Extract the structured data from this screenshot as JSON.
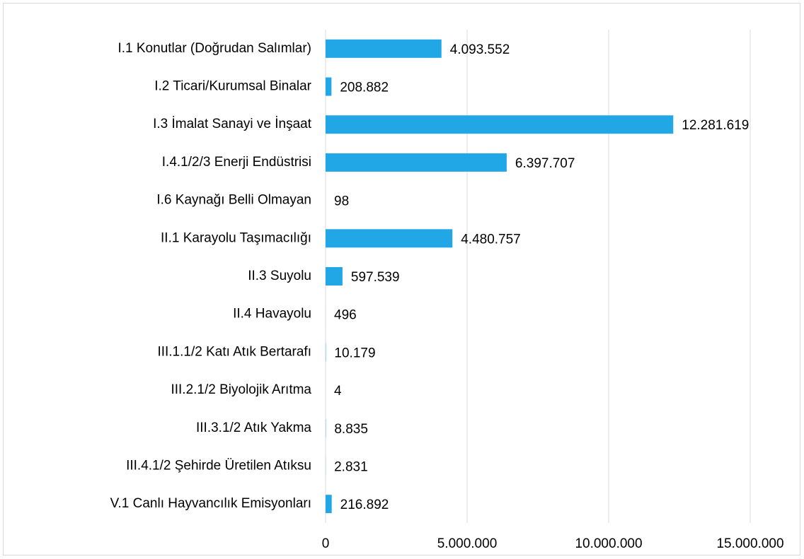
{
  "chart_data": {
    "type": "barh",
    "categories": [
      "I.1 Konutlar (Doğrudan Salımlar)",
      "I.2 Ticari/Kurumsal Binalar",
      "I.3 İmalat Sanayi ve İnşaat",
      "I.4.1/2/3 Enerji Endüstrisi",
      "I.6 Kaynağı Belli Olmayan",
      "II.1 Karayolu Taşımacılığı",
      "II.3 Suyolu",
      "II.4 Havayolu",
      "III.1.1/2 Katı Atık Bertarafı",
      "III.2.1/2 Biyolojik Arıtma",
      "III.3.1/2 Atık Yakma",
      "III.4.1/2 Şehirde Üretilen Atıksu",
      "V.1 Canlı Hayvancılık Emisyonları"
    ],
    "values": [
      4093552,
      208882,
      12281619,
      6397707,
      98,
      4480757,
      597539,
      496,
      10179,
      4,
      8835,
      2831,
      216892
    ],
    "value_labels": [
      "4.093.552",
      "208.882",
      "12.281.619",
      "6.397.707",
      "98",
      "4.480.757",
      "597.539",
      "496",
      "10.179",
      "4",
      "8.835",
      "2.831",
      "216.892"
    ],
    "color": "#22a7e6",
    "xlim": [
      0,
      15000000
    ],
    "xticks": [
      0,
      {
        "value": 5000000,
        "label": "5.000.000"
      },
      {
        "value": 10000000,
        "label": "10.000.000"
      },
      {
        "value": 15000000,
        "label": "15.000.000"
      }
    ],
    "grid": true
  }
}
